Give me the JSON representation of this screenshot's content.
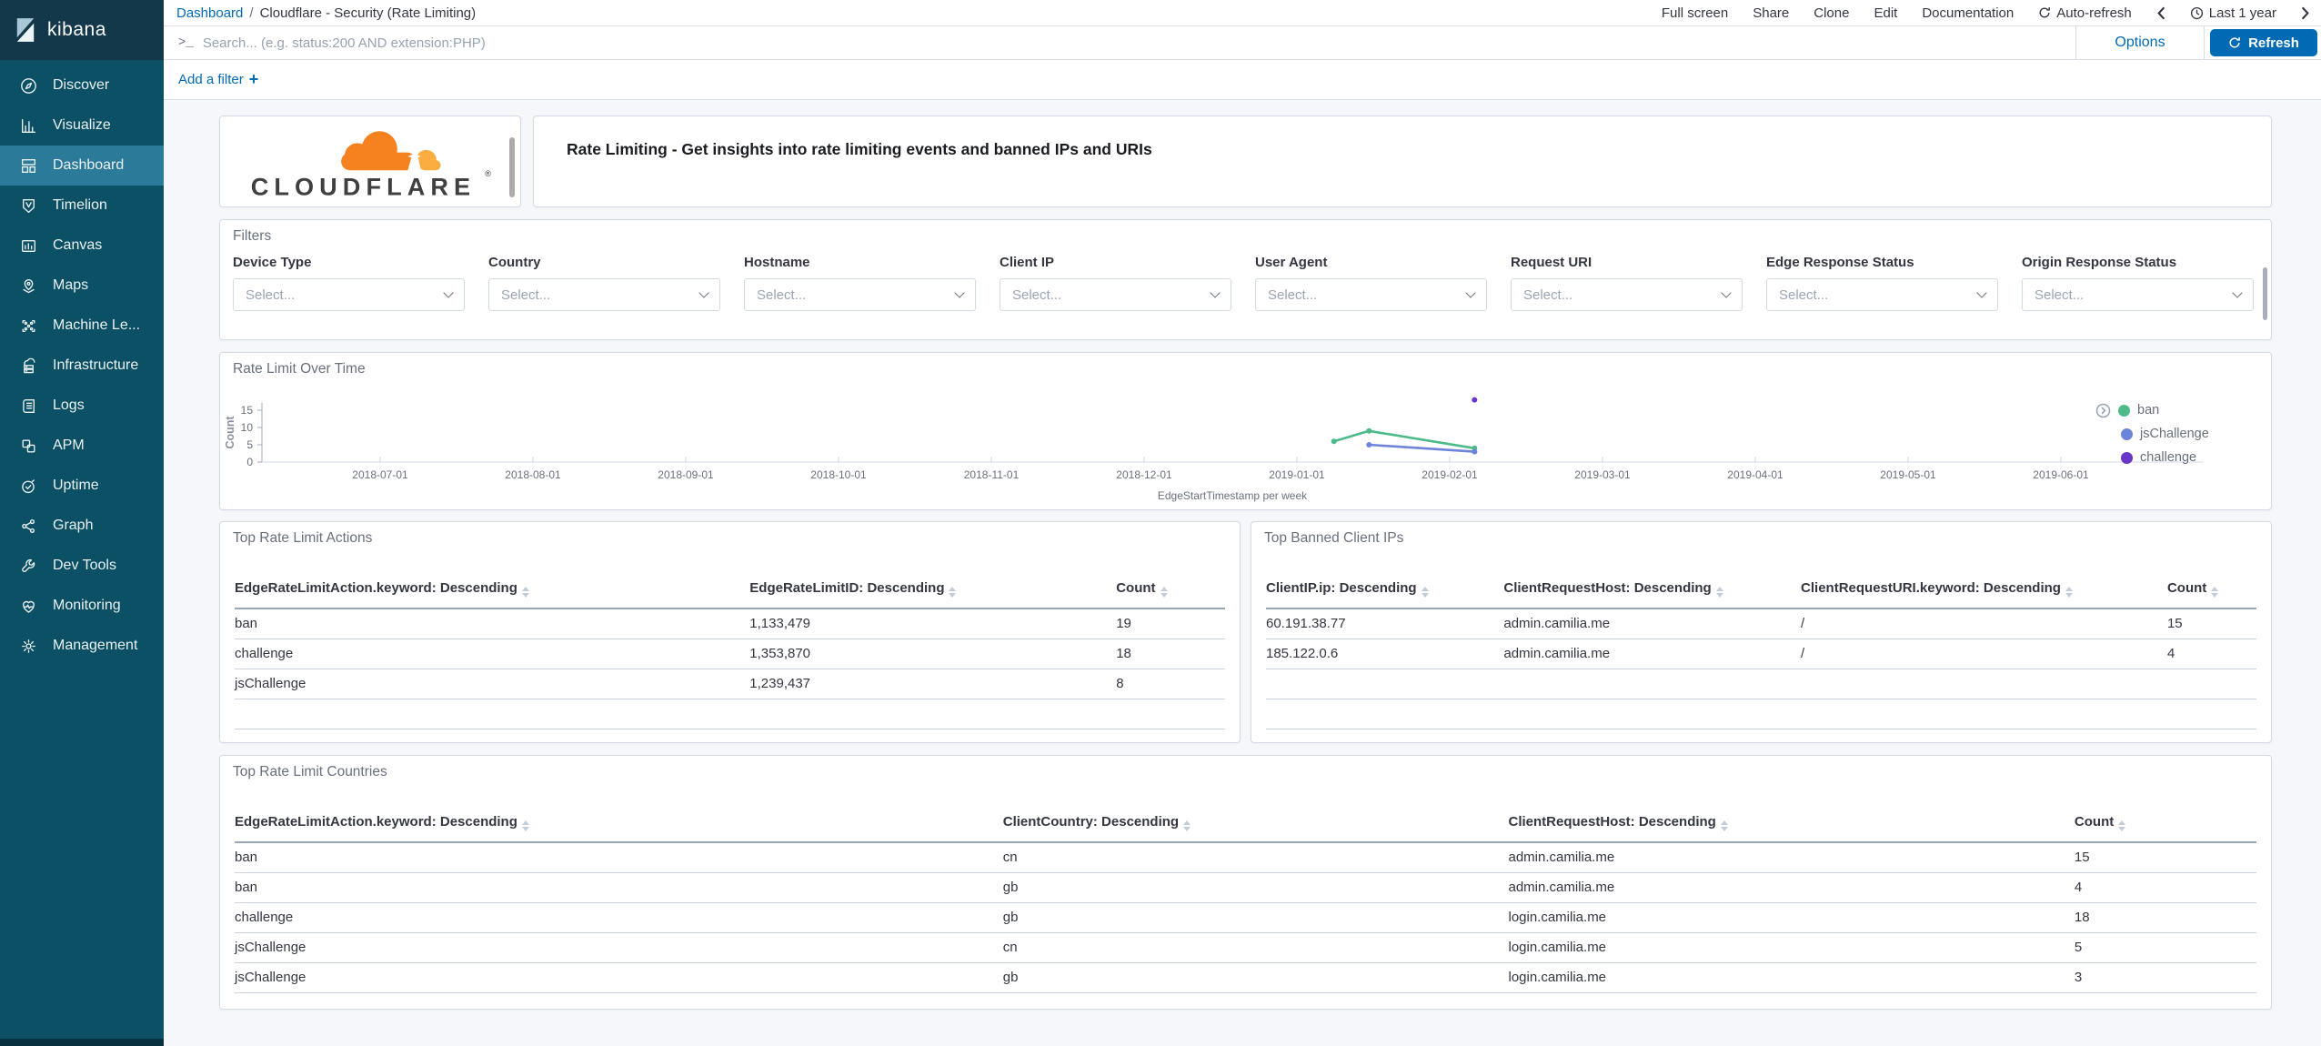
{
  "sidebar": {
    "logo_text": "kibana",
    "items": [
      {
        "label": "Discover",
        "icon": "compass-icon",
        "active": false
      },
      {
        "label": "Visualize",
        "icon": "bar-chart-icon",
        "active": false
      },
      {
        "label": "Dashboard",
        "icon": "dashboard-grid-icon",
        "active": true
      },
      {
        "label": "Timelion",
        "icon": "timelion-icon",
        "active": false
      },
      {
        "label": "Canvas",
        "icon": "canvas-icon",
        "active": false
      },
      {
        "label": "Maps",
        "icon": "map-pin-icon",
        "active": false
      },
      {
        "label": "Machine Le...",
        "icon": "machine-learning-icon",
        "active": false
      },
      {
        "label": "Infrastructure",
        "icon": "infrastructure-icon",
        "active": false
      },
      {
        "label": "Logs",
        "icon": "logs-icon",
        "active": false
      },
      {
        "label": "APM",
        "icon": "apm-icon",
        "active": false
      },
      {
        "label": "Uptime",
        "icon": "uptime-icon",
        "active": false
      },
      {
        "label": "Graph",
        "icon": "graph-icon",
        "active": false
      },
      {
        "label": "Dev Tools",
        "icon": "wrench-icon",
        "active": false
      },
      {
        "label": "Monitoring",
        "icon": "monitoring-icon",
        "active": false
      },
      {
        "label": "Management",
        "icon": "gear-icon",
        "active": false
      }
    ]
  },
  "topbar": {
    "breadcrumb": {
      "root": "Dashboard",
      "separator": "/",
      "current": "Cloudflare - Security (Rate Limiting)"
    },
    "menu": [
      "Full screen",
      "Share",
      "Clone",
      "Edit",
      "Documentation"
    ],
    "auto_refresh_label": "Auto-refresh",
    "time_range_label": "Last 1 year"
  },
  "search_bar": {
    "prompt_glyph": ">_",
    "placeholder": "Search... (e.g. status:200 AND extension:PHP)",
    "options_label": "Options",
    "refresh_label": "Refresh"
  },
  "filter_row": {
    "add_filter_label": "Add a filter",
    "plus_glyph": "+"
  },
  "header_panels": {
    "logo_text": "CLOUDFLARE",
    "registered_mark": "®",
    "description": "Rate Limiting - Get insights into rate limiting events and banned IPs and URIs"
  },
  "filters_panel": {
    "title": "Filters",
    "select_placeholder": "Select...",
    "fields": [
      "Device Type",
      "Country",
      "Hostname",
      "Client IP",
      "User Agent",
      "Request URI",
      "Edge Response Status",
      "Origin Response Status"
    ]
  },
  "chart_data": {
    "type": "line",
    "title": "Rate Limit Over Time",
    "xlabel": "EdgeStartTimestamp per week",
    "ylabel": "Count",
    "ylim": [
      0,
      17.5
    ],
    "yticks": [
      0,
      5,
      10,
      15
    ],
    "xticks": [
      "2018-07-01",
      "2018-08-01",
      "2018-09-01",
      "2018-10-01",
      "2018-11-01",
      "2018-12-01",
      "2019-01-01",
      "2019-02-01",
      "2019-03-01",
      "2019-04-01",
      "2019-05-01",
      "2019-06-01"
    ],
    "legend_position": "right",
    "series": [
      {
        "name": "ban",
        "color": "#4DBA89",
        "points": [
          [
            "2019-01-07",
            6
          ],
          [
            "2019-01-14",
            9
          ],
          [
            "2019-02-04",
            4
          ]
        ]
      },
      {
        "name": "jsChallenge",
        "color": "#6E84DB",
        "points": [
          [
            "2019-01-14",
            5
          ],
          [
            "2019-02-04",
            3
          ]
        ]
      },
      {
        "name": "challenge",
        "color": "#6A35C9",
        "points": [
          [
            "2019-02-04",
            18
          ]
        ]
      }
    ]
  },
  "tables": {
    "actions": {
      "title": "Top Rate Limit Actions",
      "columns": [
        "EdgeRateLimitAction.keyword: Descending",
        "EdgeRateLimitID: Descending",
        "Count"
      ],
      "rows": [
        [
          "ban",
          "1,133,479",
          "19"
        ],
        [
          "challenge",
          "1,353,870",
          "18"
        ],
        [
          "jsChallenge",
          "1,239,437",
          "8"
        ]
      ]
    },
    "banned_ips": {
      "title": "Top Banned Client IPs",
      "columns": [
        "ClientIP.ip: Descending",
        "ClientRequestHost: Descending",
        "ClientRequestURI.keyword: Descending",
        "Count"
      ],
      "rows": [
        [
          "60.191.38.77",
          "admin.camilia.me",
          "/",
          "15"
        ],
        [
          "185.122.0.6",
          "admin.camilia.me",
          "/",
          "4"
        ]
      ]
    },
    "countries": {
      "title": "Top Rate Limit Countries",
      "columns": [
        "EdgeRateLimitAction.keyword: Descending",
        "ClientCountry: Descending",
        "ClientRequestHost: Descending",
        "Count"
      ],
      "rows": [
        [
          "ban",
          "cn",
          "admin.camilia.me",
          "15"
        ],
        [
          "ban",
          "gb",
          "admin.camilia.me",
          "4"
        ],
        [
          "challenge",
          "gb",
          "login.camilia.me",
          "18"
        ],
        [
          "jsChallenge",
          "cn",
          "login.camilia.me",
          "5"
        ],
        [
          "jsChallenge",
          "gb",
          "login.camilia.me",
          "3"
        ]
      ]
    }
  },
  "colors": {
    "link": "#006BB4",
    "refresh_button": "#006BB4",
    "sidebar_bg": "#0C5065",
    "sidebar_active": "#2C7A99",
    "panel_border": "#D3DAE6",
    "page_bg": "#F5F7FA",
    "cloudflare_orange": "#F6821F",
    "cloudflare_light_orange": "#FBAD41"
  }
}
